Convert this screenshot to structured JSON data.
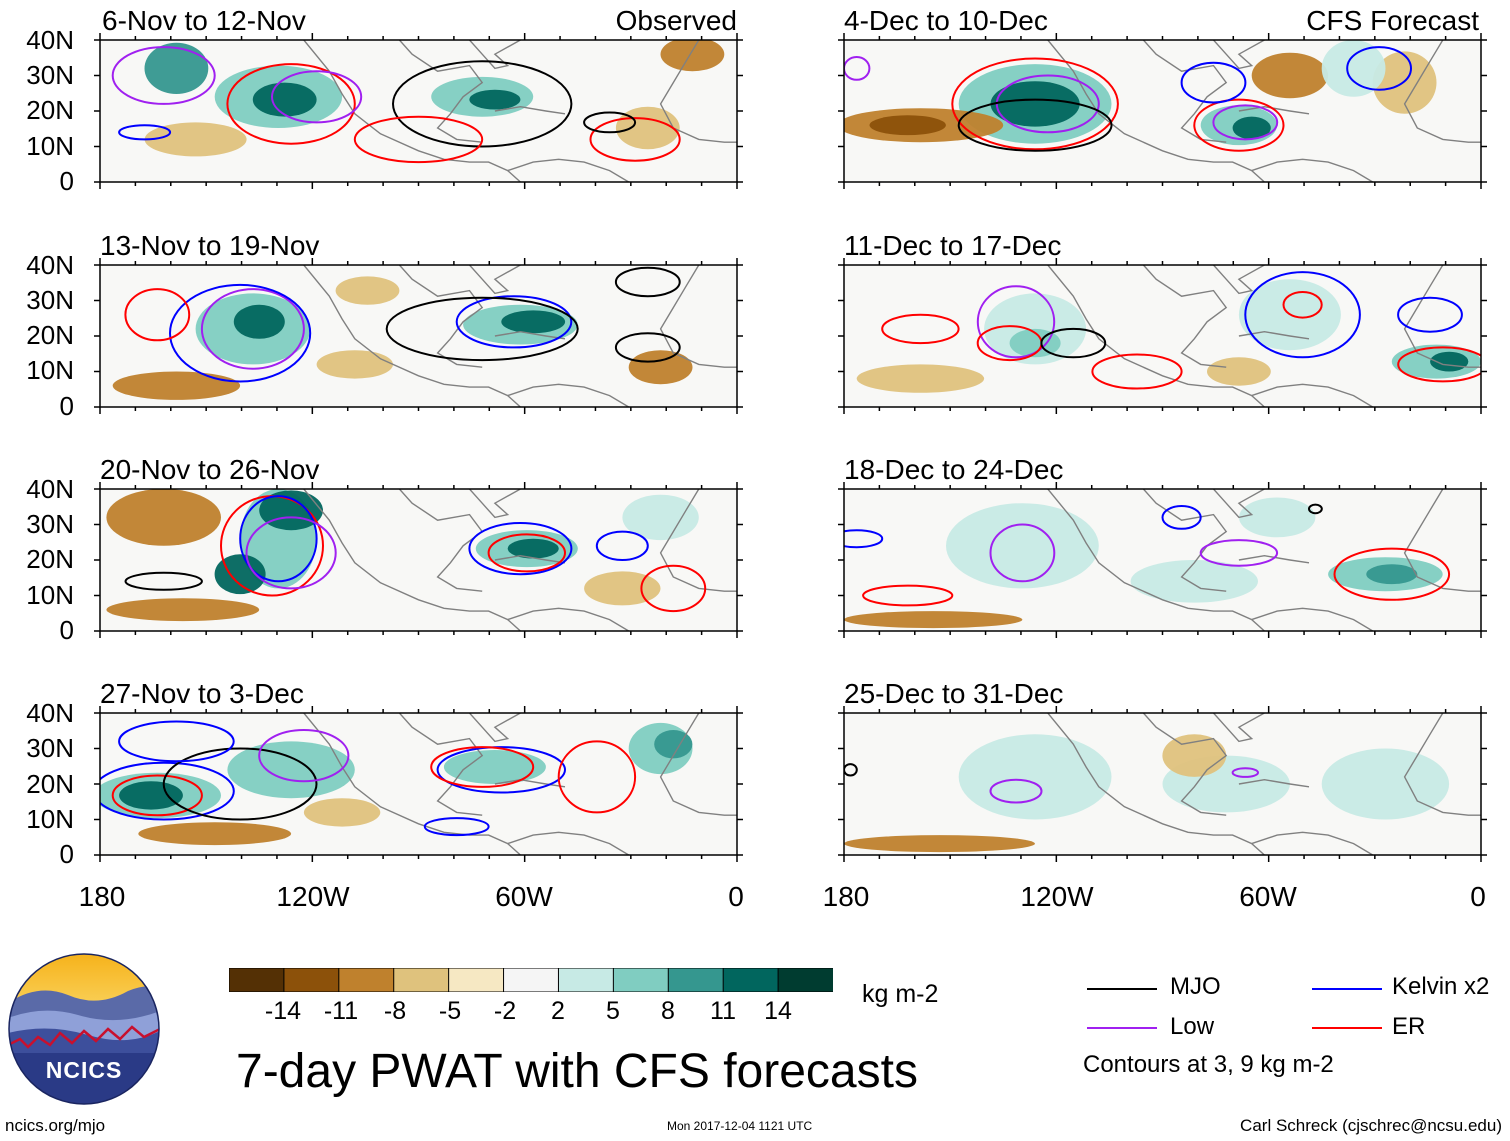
{
  "panels": {
    "left": [
      {
        "title": "6-Nov to 12-Nov",
        "tag": "Observed"
      },
      {
        "title": "13-Nov to 19-Nov",
        "tag": ""
      },
      {
        "title": "20-Nov to 26-Nov",
        "tag": ""
      },
      {
        "title": "27-Nov to 3-Dec",
        "tag": ""
      }
    ],
    "right": [
      {
        "title": "4-Dec to 10-Dec",
        "tag": "CFS Forecast"
      },
      {
        "title": "11-Dec to 17-Dec",
        "tag": ""
      },
      {
        "title": "18-Dec to 24-Dec",
        "tag": ""
      },
      {
        "title": "25-Dec to 31-Dec",
        "tag": ""
      }
    ]
  },
  "axes": {
    "lat_ticks": [
      "40N",
      "30N",
      "20N",
      "10N",
      "0"
    ],
    "lon_ticks": [
      "180",
      "120W",
      "60W",
      "0"
    ]
  },
  "colorbar": {
    "labels": [
      "-14",
      "-11",
      "-8",
      "-5",
      "-2",
      "2",
      "5",
      "8",
      "11",
      "14"
    ],
    "colors": [
      "#543005",
      "#8c510a",
      "#bf812d",
      "#dfc27d",
      "#f6e8c3",
      "#f5f5f5",
      "#c7eae5",
      "#80cdc1",
      "#35978f",
      "#01665e",
      "#003c30"
    ],
    "units": "kg m-2"
  },
  "legend": {
    "items": [
      {
        "label": "MJO",
        "color": "#000000"
      },
      {
        "label": "Kelvin x2",
        "color": "#0000ff"
      },
      {
        "label": "Low",
        "color": "#a020f0"
      },
      {
        "label": "ER",
        "color": "#ff0000"
      }
    ],
    "note": "Contours at 3, 9 kg m-2"
  },
  "logo": {
    "text": "NCICS"
  },
  "title": "7-day PWAT with CFS forecasts",
  "footer": {
    "left": "ncics.org/mjo",
    "center": "Mon 2017-12-04 1121 UTC",
    "right": "Carl Schreck (cjschrec@ncsu.edu)"
  }
}
